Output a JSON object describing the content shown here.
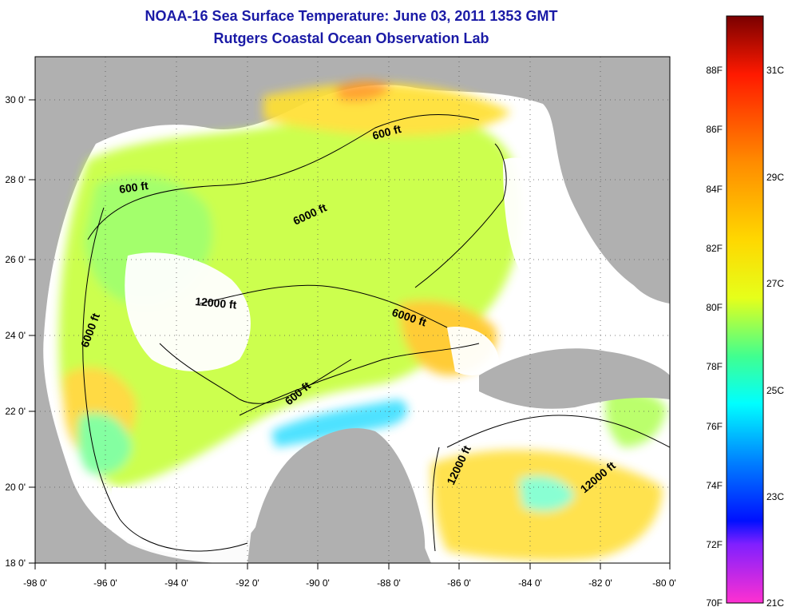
{
  "title": "NOAA-16 Sea Surface Temperature:  June 03, 2011 1353 GMT",
  "subtitle": "Rutgers Coastal Ocean Observation Lab",
  "map": {
    "lon_range": [
      -98,
      -80
    ],
    "lat_range": [
      18,
      31
    ],
    "grid": true,
    "lon_ticks": [
      "-98 0'",
      "-96 0'",
      "-94 0'",
      "-92 0'",
      "-90 0'",
      "-88 0'",
      "-86 0'",
      "-84 0'",
      "-82 0'",
      "-80 0'"
    ],
    "lat_ticks": [
      "18 0'",
      "20 0'",
      "22 0'",
      "24 0'",
      "26 0'",
      "28 0'",
      "30 0'"
    ],
    "land_color": "#b0b0b0",
    "nodata_color": "#ffffff",
    "contour_labels": [
      "600 ft",
      "600 ft",
      "6000 ft",
      "12000 ft",
      "6000 ft",
      "6000 ft",
      "600 ft",
      "12000 ft",
      "12000 ft"
    ]
  },
  "colorbar": {
    "fahrenheit": [
      "88F",
      "86F",
      "84F",
      "82F",
      "80F",
      "78F",
      "76F",
      "74F",
      "72F",
      "70F"
    ],
    "celsius": [
      "31C",
      "29C",
      "27C",
      "25C",
      "23C",
      "21C"
    ],
    "colors_top_to_bottom": [
      "#7a0000",
      "#ff1a00",
      "#ff8c00",
      "#ffd700",
      "#e6ff1a",
      "#40ff90",
      "#00ffff",
      "#0080ff",
      "#0010ff",
      "#8020ff",
      "#ff30d0"
    ]
  }
}
